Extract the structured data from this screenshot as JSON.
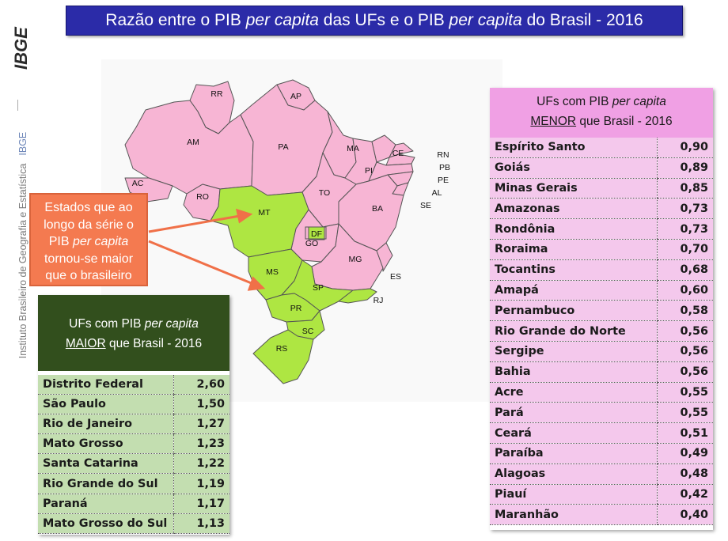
{
  "title": {
    "p1": "Razão entre o PIB ",
    "p2": "per capita",
    "p3": " das UFs e o PIB ",
    "p4": "per capita",
    "p5": " do Brasil - 2016"
  },
  "sidebar": {
    "logo_text": "IBGE",
    "institute": "Instituto Brasileiro de Geografia e Estatística",
    "short": "IBGE"
  },
  "callout": {
    "l1": "Estados que ao",
    "l2": "longo da série o",
    "l3": "PIB ",
    "l3i": "per capita",
    "l4": "tornou-se maior",
    "l5": "que o brasileiro"
  },
  "map": {
    "labels": [
      "RR",
      "AP",
      "AM",
      "PA",
      "MA",
      "CE",
      "RN",
      "PB",
      "PE",
      "AL",
      "SE",
      "PI",
      "AC",
      "RO",
      "TO",
      "BA",
      "MT",
      "DF",
      "GO",
      "MG",
      "ES",
      "MS",
      "SP",
      "RJ",
      "PR",
      "SC",
      "RS"
    ],
    "colors": {
      "pink": "#f7b5d4",
      "green": "#aee642",
      "border": "#555555"
    }
  },
  "maior": {
    "h1": "UFs com PIB ",
    "h1i": "per capita",
    "h2u": "MAIOR",
    "h2": " que Brasil - 2016",
    "rows": [
      {
        "uf": "Distrito Federal",
        "v": "2,60"
      },
      {
        "uf": "São Paulo",
        "v": "1,50"
      },
      {
        "uf": "Rio de Janeiro",
        "v": "1,27"
      },
      {
        "uf": "Mato Grosso",
        "v": "1,23"
      },
      {
        "uf": "Santa Catarina",
        "v": "1,22"
      },
      {
        "uf": "Rio Grande do Sul",
        "v": "1,19"
      },
      {
        "uf": "Paraná",
        "v": "1,17"
      },
      {
        "uf": "Mato Grosso do Sul",
        "v": "1,13"
      }
    ]
  },
  "menor": {
    "h1": "UFs com PIB ",
    "h1i": "per capita",
    "h2u": "MENOR",
    "h2": " que Brasil  - 2016",
    "rows": [
      {
        "uf": "Espírito Santo",
        "v": "0,90"
      },
      {
        "uf": "Goiás",
        "v": "0,89"
      },
      {
        "uf": "Minas Gerais",
        "v": "0,85"
      },
      {
        "uf": "Amazonas",
        "v": "0,73"
      },
      {
        "uf": "Rondônia",
        "v": "0,73"
      },
      {
        "uf": "Roraima",
        "v": "0,70"
      },
      {
        "uf": "Tocantins",
        "v": "0,68"
      },
      {
        "uf": "Amapá",
        "v": "0,60"
      },
      {
        "uf": "Pernambuco",
        "v": "0,58"
      },
      {
        "uf": "Rio Grande do Norte",
        "v": "0,56"
      },
      {
        "uf": "Sergipe",
        "v": "0,56"
      },
      {
        "uf": "Bahia",
        "v": "0,56"
      },
      {
        "uf": "Acre",
        "v": "0,55"
      },
      {
        "uf": "Pará",
        "v": "0,55"
      },
      {
        "uf": "Ceará",
        "v": "0,51"
      },
      {
        "uf": "Paraíba",
        "v": "0,49"
      },
      {
        "uf": "Alagoas",
        "v": "0,48"
      },
      {
        "uf": "Piauí",
        "v": "0,42"
      },
      {
        "uf": "Maranhão",
        "v": "0,40"
      }
    ]
  }
}
